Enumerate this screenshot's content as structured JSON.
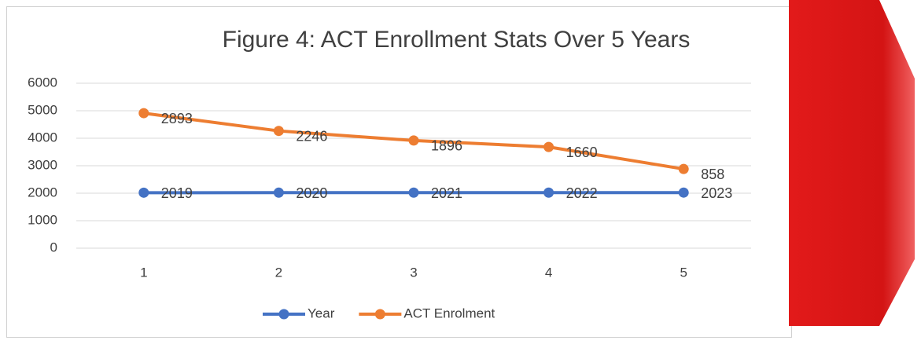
{
  "chart_data": {
    "type": "line",
    "stacked": true,
    "title": "Figure 4: ACT Enrollment Stats Over 5 Years",
    "categories": [
      "1",
      "2",
      "3",
      "4",
      "5"
    ],
    "series": [
      {
        "name": "Year",
        "color": "#4472c4",
        "values": [
          2019,
          2020,
          2021,
          2022,
          2023
        ]
      },
      {
        "name": "ACT Enrolment",
        "color": "#ed7d31",
        "values": [
          2893,
          2246,
          1896,
          1660,
          858
        ]
      }
    ],
    "ylim": [
      0,
      6000
    ],
    "yticks": [
      0,
      1000,
      2000,
      3000,
      4000,
      5000,
      6000
    ],
    "grid": true,
    "legend": "bottom",
    "data_labels": true
  }
}
